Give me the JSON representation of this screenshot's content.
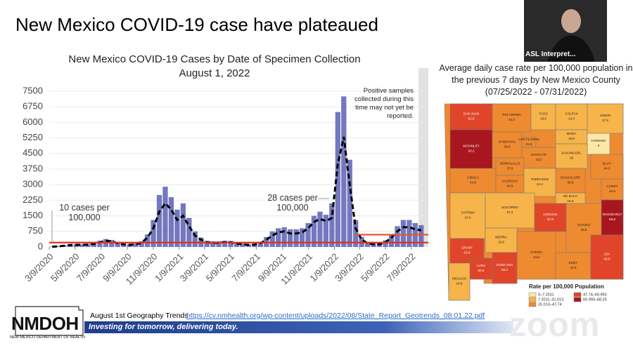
{
  "slide_title": "New Mexico COVID-19 case have plateaued",
  "chart_data": {
    "type": "bar",
    "title": "New Mexico COVID-19 Cases by Date of Specimen Collection",
    "subtitle": "August 1, 2022",
    "note": "Positive samples collected during this time may not yet be reported.",
    "xlim": [
      0,
      63
    ],
    "xticks": [
      {
        "value": 0,
        "label": "3/9/2020"
      },
      {
        "value": 4.36,
        "label": "5/9/2020"
      },
      {
        "value": 8.71,
        "label": "7/9/2020"
      },
      {
        "value": 13.14,
        "label": "9/9/2020"
      },
      {
        "value": 17.5,
        "label": "11/9/2020"
      },
      {
        "value": 21.86,
        "label": "1/9/2021"
      },
      {
        "value": 26.07,
        "label": "3/9/2021"
      },
      {
        "value": 30.43,
        "label": "5/9/2021"
      },
      {
        "value": 34.79,
        "label": "7/9/2021"
      },
      {
        "value": 39.21,
        "label": "9/9/2021"
      },
      {
        "value": 43.57,
        "label": "11/9/2021"
      },
      {
        "value": 47.93,
        "label": "1/9/2022"
      },
      {
        "value": 52.14,
        "label": "3/9/2022"
      },
      {
        "value": 56.5,
        "label": "5/9/2022"
      },
      {
        "value": 60.86,
        "label": "7/9/2022"
      }
    ],
    "ylim": [
      0,
      7500
    ],
    "yticks": [
      0,
      750,
      1500,
      2250,
      3000,
      3750,
      4500,
      5250,
      6000,
      6750,
      7500
    ],
    "series": [
      {
        "type": "bar",
        "color": "#5b60b4",
        "values": [
          20,
          50,
          90,
          120,
          130,
          130,
          150,
          200,
          300,
          380,
          340,
          230,
          160,
          130,
          160,
          280,
          600,
          1300,
          2500,
          2900,
          2400,
          1800,
          2100,
          1400,
          750,
          450,
          300,
          270,
          270,
          300,
          290,
          230,
          160,
          130,
          150,
          250,
          480,
          750,
          900,
          950,
          850,
          850,
          900,
          1150,
          1500,
          1700,
          1550,
          2100,
          6500,
          7250,
          4200,
          1300,
          480,
          250,
          180,
          180,
          320,
          600,
          1000,
          1300,
          1300,
          1150,
          1050
        ]
      },
      {
        "type": "line",
        "color": "#000000",
        "dashed": true,
        "values": [
          10,
          30,
          60,
          90,
          100,
          100,
          110,
          150,
          220,
          300,
          270,
          180,
          120,
          100,
          120,
          200,
          450,
          900,
          1700,
          2100,
          1800,
          1300,
          1500,
          1000,
          550,
          350,
          220,
          200,
          200,
          230,
          220,
          170,
          120,
          100,
          110,
          180,
          350,
          550,
          700,
          750,
          650,
          650,
          700,
          900,
          1200,
          1350,
          1250,
          1400,
          4000,
          5300,
          3000,
          900,
          350,
          180,
          130,
          130,
          230,
          450,
          750,
          950,
          950,
          850,
          800
        ]
      }
    ],
    "reference_lines": [
      {
        "value": 210,
        "label": "10 cases per 100,000",
        "color": "#e0301e"
      },
      {
        "value": 590,
        "label": "28 cases per 100,000",
        "color": "#e8552e"
      }
    ]
  },
  "map": {
    "title": "Average daily case rate per 100,000 population in the previous 7 days by New Mexico County (07/25/2022 - 07/31/2022)",
    "counties": [
      {
        "name": "SAN JUAN",
        "value": 52.9,
        "color": "#e0452a"
      },
      {
        "name": "RIO ARRIBA",
        "value": 43.2,
        "color": "#ee8a30"
      },
      {
        "name": "TAOS",
        "value": 19.8,
        "color": "#f6b44a"
      },
      {
        "name": "COLFAX",
        "value": 14.4,
        "color": "#f6b44a"
      },
      {
        "name": "UNION",
        "value": 17.5,
        "color": "#f6b44a"
      },
      {
        "name": "MCKINLEY",
        "value": 63.2,
        "color": "#a8161f"
      },
      {
        "name": "SANDOVAL",
        "value": 39.9,
        "color": "#ee8a30"
      },
      {
        "name": "LOS ALAMOS",
        "value": 31.8,
        "color": "#ee8a30"
      },
      {
        "name": "MORA",
        "value": 18.8,
        "color": "#f6b44a"
      },
      {
        "name": "HARDING",
        "value": 0.0,
        "color": "#fbe8a6"
      },
      {
        "name": "SANTA FE",
        "value": 42.2,
        "color": "#ee8a30"
      },
      {
        "name": "SAN MIGUEL",
        "value": 25.0,
        "color": "#f6b44a"
      },
      {
        "name": "BERNALILLO",
        "value": 37.8,
        "color": "#ee8a30"
      },
      {
        "name": "QUAY",
        "value": 44.2,
        "color": "#ee8a30"
      },
      {
        "name": "CIBOLA",
        "value": 44.6,
        "color": "#ee8a30"
      },
      {
        "name": "VALENCIA",
        "value": 40.6,
        "color": "#ee8a30"
      },
      {
        "name": "TORRANCE",
        "value": 22.4,
        "color": "#f6b44a"
      },
      {
        "name": "GUADALUPE",
        "value": 38.8,
        "color": "#ee8a30"
      },
      {
        "name": "CURRY",
        "value": 40.9,
        "color": "#ee8a30"
      },
      {
        "name": "DE BACA",
        "value": 16.6,
        "color": "#f6b44a"
      },
      {
        "name": "ROOSEVELT",
        "value": 66.8,
        "color": "#a8161f"
      },
      {
        "name": "CATRON",
        "value": 24.3,
        "color": "#f6b44a"
      },
      {
        "name": "SOCORRO",
        "value": 27.4,
        "color": "#f6b44a"
      },
      {
        "name": "LINCOLN",
        "value": 57.8,
        "color": "#e0452a"
      },
      {
        "name": "CHAVES",
        "value": 46.6,
        "color": "#ee8a30"
      },
      {
        "name": "SIERRA",
        "value": 16.8,
        "color": "#f6b44a"
      },
      {
        "name": "GRANT",
        "value": 52.9,
        "color": "#e0452a"
      },
      {
        "name": "OTERO",
        "value": 34.6,
        "color": "#ee8a30"
      },
      {
        "name": "EDDY",
        "value": 44.9,
        "color": "#ee8a30"
      },
      {
        "name": "LEA",
        "value": 48.9,
        "color": "#e0452a"
      },
      {
        "name": "LUNA",
        "value": 60.6,
        "color": "#e0452a"
      },
      {
        "name": "DONA ANA",
        "value": 55.2,
        "color": "#e0452a"
      },
      {
        "name": "HIDALGO",
        "value": 16.8,
        "color": "#f6b44a"
      }
    ],
    "legend_title": "Rate per 100,000 Population",
    "legend": [
      {
        "label": "0–7.2011",
        "color": "#fbe8a6"
      },
      {
        "label": "7.2011–31.013",
        "color": "#f6b44a"
      },
      {
        "label": "31.013–47.74",
        "color": "#ee8a30"
      },
      {
        "label": "47.74–60.993",
        "color": "#e0452a"
      },
      {
        "label": "60.993–68.25",
        "color": "#a8161f"
      }
    ]
  },
  "footer": {
    "label": "August 1st Geography Trends",
    "link": "https://cv.nmhealth.org/wp-content/uploads/2022/08/State_Report_Geotrends_08.01.22.pdf",
    "tagline": "Investing for tomorrow, delivering today.",
    "logo": "NMDOH",
    "logo_subtitle": "NEW MEXICO DEPARTMENT OF HEALTH"
  },
  "video": {
    "participant": "ASL Interpret...",
    "app": "zoom"
  }
}
